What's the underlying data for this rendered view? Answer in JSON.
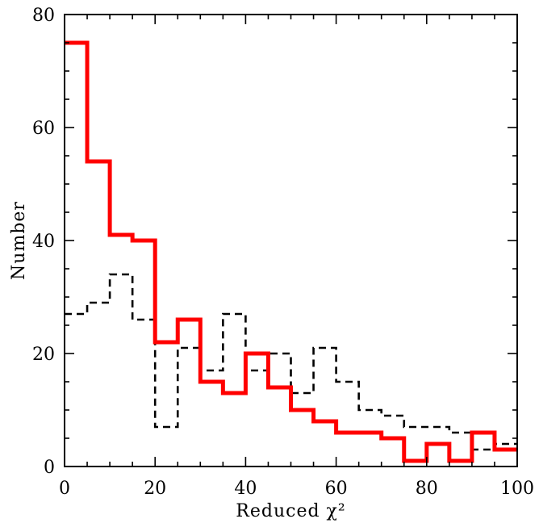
{
  "chart_data": {
    "type": "histogram-step",
    "xlabel": "Reduced χ²",
    "ylabel": "Number",
    "title": "",
    "xlim": [
      0,
      100
    ],
    "ylim": [
      0,
      80
    ],
    "x_ticks": [
      "0",
      "20",
      "40",
      "60",
      "80",
      "100"
    ],
    "y_ticks": [
      "0",
      "20",
      "40",
      "60",
      "80"
    ],
    "bin_width": 5,
    "bin_edges": [
      0,
      5,
      10,
      15,
      20,
      25,
      30,
      35,
      40,
      45,
      50,
      55,
      60,
      65,
      70,
      75,
      80,
      85,
      90,
      95,
      100
    ],
    "grid": false,
    "series": [
      {
        "style": "dashed",
        "color": "#000000",
        "values": [
          27,
          29,
          34,
          26,
          7,
          21,
          17,
          27,
          17,
          20,
          13,
          21,
          15,
          10,
          9,
          7,
          7,
          6,
          3,
          4
        ]
      },
      {
        "style": "solid",
        "color": "#ff0000",
        "values": [
          75,
          54,
          41,
          40,
          22,
          26,
          15,
          13,
          20,
          14,
          10,
          8,
          6,
          6,
          5,
          1,
          4,
          1,
          6,
          3
        ]
      }
    ]
  }
}
